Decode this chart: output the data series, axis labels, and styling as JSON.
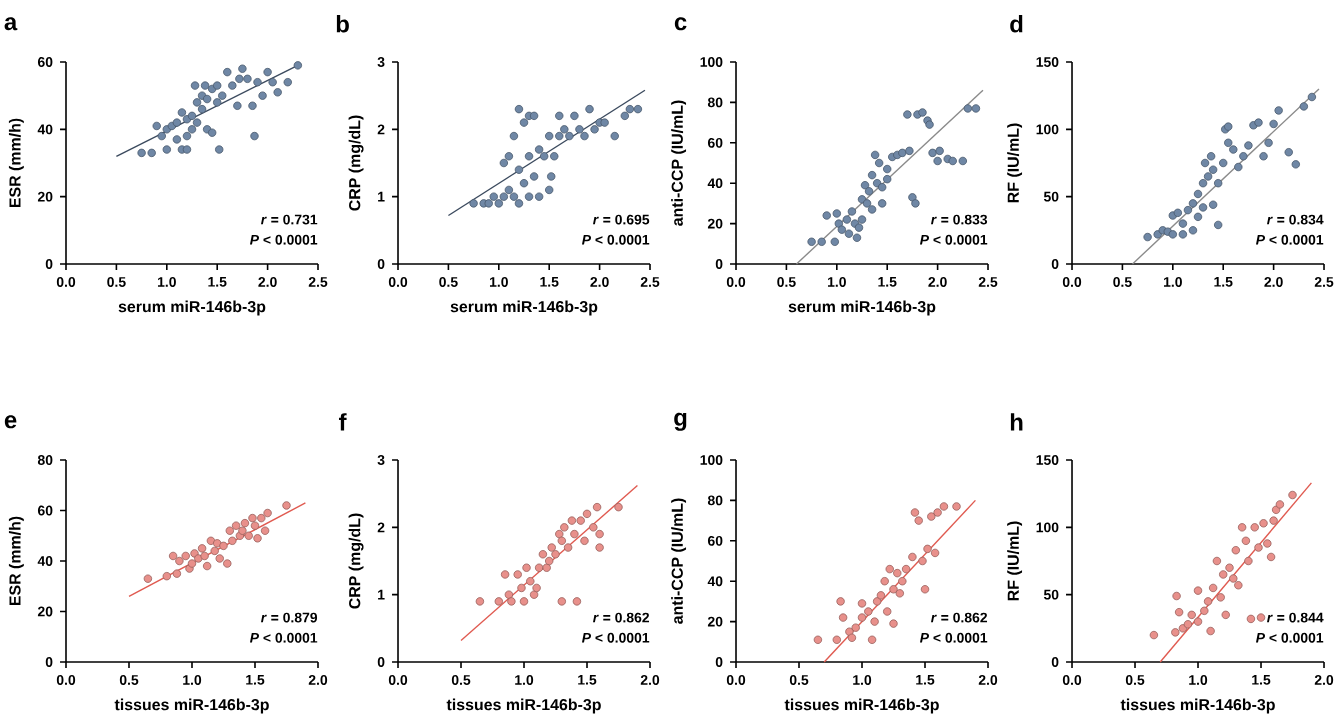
{
  "chart_data": [
    {
      "type": "scatter",
      "title": "a",
      "xlabel": "serum miR-146b-3p",
      "ylabel": "ESR (mm/h)",
      "marker": "circle",
      "xlim": [
        0,
        2.5
      ],
      "ylim": [
        0,
        60
      ],
      "xticks": [
        {
          "value": 0,
          "label": "0.0"
        },
        0.5,
        {
          "value": 1,
          "label": "1.0"
        },
        1.5,
        {
          "value": 2,
          "label": "2.0"
        },
        2.5
      ],
      "yticks": [
        0,
        20,
        40,
        60
      ],
      "annotations": [
        "*r* = 0.731",
        "*P* < 0.0001"
      ],
      "series": [
        {
          "color": "#6f87a5",
          "x": [
            0.75,
            0.85,
            0.9,
            0.95,
            1.0,
            1.0,
            1.05,
            1.1,
            1.1,
            1.15,
            1.15,
            1.2,
            1.2,
            1.2,
            1.25,
            1.25,
            1.28,
            1.3,
            1.3,
            1.35,
            1.35,
            1.38,
            1.4,
            1.4,
            1.45,
            1.45,
            1.5,
            1.5,
            1.52,
            1.55,
            1.6,
            1.65,
            1.7,
            1.72,
            1.75,
            1.8,
            1.85,
            1.87,
            1.9,
            1.95,
            2.0,
            2.05,
            2.1,
            2.2,
            2.3
          ],
          "values": [
            33,
            33,
            41,
            38,
            40,
            34,
            41,
            42,
            37,
            45,
            34,
            43,
            38,
            34,
            44,
            40,
            53,
            48,
            42,
            50,
            46,
            53,
            49,
            40,
            52,
            39,
            53,
            48,
            34,
            50,
            57,
            53,
            47,
            55,
            58,
            55,
            47,
            38,
            54,
            50,
            57,
            54,
            51,
            54,
            59
          ]
        },
        {
          "type": "line",
          "marker": "none",
          "color": "#3b4a5e",
          "x": [
            0.5,
            2.3
          ],
          "values": [
            32,
            59
          ]
        }
      ]
    },
    {
      "type": "scatter",
      "title": "b",
      "xlabel": "serum miR-146b-3p",
      "ylabel": "CRP (mg/dL)",
      "marker": "circle",
      "xlim": [
        0,
        2.5
      ],
      "ylim": [
        0,
        3
      ],
      "xticks": [
        {
          "value": 0,
          "label": "0.0"
        },
        0.5,
        {
          "value": 1,
          "label": "1.0"
        },
        1.5,
        {
          "value": 2,
          "label": "2.0"
        },
        2.5
      ],
      "yticks": [
        0,
        1,
        2,
        3
      ],
      "annotations": [
        "*r* = 0.695",
        "*P* < 0.0001"
      ],
      "series": [
        {
          "color": "#6f87a5",
          "x": [
            0.75,
            0.85,
            0.9,
            0.95,
            1.0,
            1.05,
            1.05,
            1.1,
            1.1,
            1.15,
            1.15,
            1.2,
            1.2,
            1.2,
            1.25,
            1.25,
            1.3,
            1.3,
            1.3,
            1.35,
            1.35,
            1.4,
            1.4,
            1.45,
            1.5,
            1.5,
            1.52,
            1.55,
            1.6,
            1.6,
            1.65,
            1.7,
            1.75,
            1.8,
            1.85,
            1.9,
            1.95,
            2.0,
            2.05,
            2.15,
            2.25,
            2.3,
            2.38
          ],
          "values": [
            0.9,
            0.9,
            0.9,
            1.0,
            0.9,
            1.0,
            1.5,
            1.1,
            1.6,
            1.9,
            1.0,
            2.3,
            1.4,
            0.9,
            2.1,
            1.2,
            2.2,
            1.6,
            1.0,
            2.2,
            1.3,
            1.7,
            1.0,
            1.6,
            1.9,
            1.1,
            1.3,
            1.6,
            2.2,
            1.9,
            2.0,
            1.9,
            2.2,
            2.0,
            1.9,
            2.3,
            2.0,
            2.1,
            2.1,
            1.9,
            2.2,
            2.3,
            2.3
          ]
        },
        {
          "type": "line",
          "marker": "none",
          "color": "#3b4a5e",
          "x": [
            0.5,
            2.45
          ],
          "values": [
            0.72,
            2.58
          ]
        }
      ]
    },
    {
      "type": "scatter",
      "title": "c",
      "xlabel": "serum miR-146b-3p",
      "ylabel": "anti-CCP (IU/mL)",
      "marker": "circle",
      "xlim": [
        0,
        2.5
      ],
      "ylim": [
        0,
        100
      ],
      "xticks": [
        {
          "value": 0,
          "label": "0.0"
        },
        0.5,
        {
          "value": 1,
          "label": "1.0"
        },
        1.5,
        {
          "value": 2,
          "label": "2.0"
        },
        2.5
      ],
      "yticks": [
        0,
        20,
        40,
        60,
        80,
        100
      ],
      "annotations": [
        "*r* = 0.833",
        "*P* < 0.0001"
      ],
      "series": [
        {
          "color": "#6f87a5",
          "x": [
            0.75,
            0.85,
            0.9,
            0.98,
            1.0,
            1.02,
            1.05,
            1.1,
            1.12,
            1.15,
            1.18,
            1.2,
            1.22,
            1.25,
            1.25,
            1.28,
            1.3,
            1.32,
            1.35,
            1.35,
            1.38,
            1.4,
            1.42,
            1.45,
            1.45,
            1.5,
            1.5,
            1.55,
            1.6,
            1.65,
            1.7,
            1.72,
            1.75,
            1.78,
            1.8,
            1.85,
            1.9,
            1.92,
            1.95,
            2.0,
            2.02,
            2.1,
            2.15,
            2.25,
            2.3,
            2.38
          ],
          "values": [
            11,
            11,
            24,
            11,
            25,
            20,
            17,
            22,
            15,
            26,
            20,
            13,
            18,
            32,
            22,
            39,
            30,
            36,
            44,
            27,
            54,
            40,
            50,
            38,
            30,
            47,
            42,
            53,
            54,
            55,
            74,
            56,
            33,
            30,
            74,
            75,
            71,
            69,
            55,
            51,
            56,
            52,
            51,
            51,
            77,
            77
          ]
        },
        {
          "type": "line",
          "marker": "none",
          "color": "#8a8a8a",
          "x": [
            0.6,
            2.45
          ],
          "values": [
            0,
            86
          ]
        }
      ]
    },
    {
      "type": "scatter",
      "title": "d",
      "ylabel": "RF (IU/mL)",
      "marker": "circle",
      "xlim": [
        0,
        2.5
      ],
      "ylim": [
        0,
        150
      ],
      "xticks": [
        {
          "value": 0,
          "label": "0.0"
        },
        0.5,
        {
          "value": 1,
          "label": "1.0"
        },
        1.5,
        {
          "value": 2,
          "label": "2.0"
        },
        2.5
      ],
      "yticks": [
        0,
        50,
        100,
        150
      ],
      "annotations": [
        "*r* = 0.834",
        "*P* < 0.0001"
      ],
      "series": [
        {
          "color": "#6f87a5",
          "x": [
            0.75,
            0.85,
            0.9,
            0.95,
            1.0,
            1.0,
            1.05,
            1.1,
            1.1,
            1.15,
            1.2,
            1.2,
            1.25,
            1.25,
            1.3,
            1.3,
            1.32,
            1.35,
            1.38,
            1.4,
            1.4,
            1.45,
            1.45,
            1.5,
            1.52,
            1.55,
            1.55,
            1.6,
            1.65,
            1.7,
            1.75,
            1.8,
            1.85,
            1.9,
            1.95,
            2.0,
            2.05,
            2.15,
            2.22,
            2.3,
            2.38
          ],
          "values": [
            20,
            22,
            25,
            24,
            36,
            22,
            38,
            30,
            22,
            40,
            25,
            45,
            52,
            35,
            60,
            42,
            75,
            65,
            80,
            70,
            44,
            60,
            29,
            75,
            100,
            90,
            102,
            85,
            72,
            80,
            88,
            103,
            105,
            80,
            90,
            104,
            114,
            83,
            74,
            117,
            124
          ]
        },
        {
          "type": "line",
          "marker": "none",
          "color": "#8a8a8a",
          "x": [
            0.6,
            2.45
          ],
          "values": [
            0,
            130
          ]
        }
      ]
    },
    {
      "type": "scatter",
      "title": "e",
      "xlabel": "tissues miR-146b-3p",
      "ylabel": "ESR (mm/h)",
      "marker": "circle",
      "xlim": [
        0,
        2
      ],
      "ylim": [
        0,
        80
      ],
      "xticks": [
        {
          "value": 0,
          "label": "0.0"
        },
        0.5,
        {
          "value": 1,
          "label": "1.0"
        },
        1.5,
        {
          "value": 2,
          "label": "2.0"
        }
      ],
      "yticks": [
        0,
        20,
        40,
        60,
        80
      ],
      "annotations": [
        "*r* = 0.879",
        "*P* < 0.0001"
      ],
      "series": [
        {
          "color": "#e8908b",
          "x": [
            0.65,
            0.8,
            0.85,
            0.88,
            0.9,
            0.95,
            0.98,
            1.0,
            1.02,
            1.05,
            1.08,
            1.1,
            1.12,
            1.15,
            1.18,
            1.2,
            1.22,
            1.25,
            1.28,
            1.3,
            1.32,
            1.35,
            1.38,
            1.4,
            1.42,
            1.45,
            1.48,
            1.5,
            1.52,
            1.55,
            1.58,
            1.6,
            1.75
          ],
          "values": [
            33,
            34,
            42,
            35,
            40,
            42,
            37,
            39,
            43,
            41,
            45,
            42,
            38,
            48,
            44,
            47,
            41,
            46,
            39,
            52,
            48,
            54,
            50,
            52,
            55,
            50,
            57,
            54,
            49,
            57,
            52,
            59,
            62
          ]
        },
        {
          "type": "line",
          "marker": "none",
          "color": "#e05a50",
          "x": [
            0.5,
            1.9
          ],
          "values": [
            26,
            63
          ]
        }
      ]
    },
    {
      "type": "scatter",
      "title": "f",
      "xlabel": "tissues miR-146b-3p",
      "ylabel": "CRP (mg/dL)",
      "marker": "circle",
      "xlim": [
        0,
        2
      ],
      "ylim": [
        0,
        3
      ],
      "xticks": [
        {
          "value": 0,
          "label": "0.0"
        },
        0.5,
        {
          "value": 1,
          "label": "1.0"
        },
        1.5,
        {
          "value": 2,
          "label": "2.0"
        }
      ],
      "yticks": [
        0,
        1,
        2,
        3
      ],
      "annotations": [
        "*r* = 0.862",
        "*P* < 0.0001"
      ],
      "series": [
        {
          "color": "#e8908b",
          "x": [
            0.65,
            0.8,
            0.85,
            0.88,
            0.9,
            0.95,
            0.98,
            1.0,
            1.02,
            1.05,
            1.08,
            1.1,
            1.12,
            1.15,
            1.18,
            1.2,
            1.22,
            1.25,
            1.28,
            1.3,
            1.3,
            1.32,
            1.35,
            1.38,
            1.4,
            1.42,
            1.45,
            1.48,
            1.5,
            1.55,
            1.58,
            1.6,
            1.6,
            1.75
          ],
          "values": [
            0.9,
            0.9,
            1.3,
            1.0,
            0.9,
            1.3,
            1.1,
            0.9,
            1.4,
            1.2,
            1.0,
            1.1,
            1.4,
            1.6,
            1.4,
            1.5,
            1.7,
            1.6,
            1.9,
            0.9,
            1.8,
            2.0,
            1.7,
            2.1,
            1.9,
            0.9,
            2.1,
            1.8,
            2.2,
            2.0,
            2.3,
            1.9,
            1.7,
            2.3
          ]
        },
        {
          "type": "line",
          "marker": "none",
          "color": "#e05a50",
          "x": [
            0.5,
            1.9
          ],
          "values": [
            0.32,
            2.62
          ]
        }
      ]
    },
    {
      "type": "scatter",
      "title": "g",
      "xlabel": "tissues miR-146b-3p",
      "ylabel": "anti-CCP (IU/mL)",
      "marker": "circle",
      "xlim": [
        0,
        2
      ],
      "ylim": [
        0,
        100
      ],
      "xticks": [
        {
          "value": 0,
          "label": "0.0"
        },
        0.5,
        {
          "value": 1,
          "label": "1.0"
        },
        1.5,
        {
          "value": 2,
          "label": "2.0"
        }
      ],
      "yticks": [
        0,
        20,
        40,
        60,
        80,
        100
      ],
      "annotations": [
        "*r* = 0.862",
        "*P* < 0.0001"
      ],
      "series": [
        {
          "color": "#e8908b",
          "x": [
            0.65,
            0.8,
            0.83,
            0.85,
            0.9,
            0.92,
            0.95,
            1.0,
            1.0,
            1.05,
            1.08,
            1.1,
            1.12,
            1.15,
            1.18,
            1.2,
            1.22,
            1.25,
            1.25,
            1.28,
            1.3,
            1.32,
            1.35,
            1.4,
            1.42,
            1.45,
            1.48,
            1.5,
            1.52,
            1.55,
            1.58,
            1.6,
            1.65,
            1.75
          ],
          "values": [
            11,
            11,
            30,
            22,
            15,
            12,
            17,
            29,
            22,
            25,
            11,
            20,
            30,
            33,
            40,
            25,
            46,
            19,
            36,
            44,
            34,
            40,
            46,
            52,
            74,
            70,
            50,
            36,
            56,
            72,
            54,
            74,
            77,
            77
          ]
        },
        {
          "type": "line",
          "marker": "none",
          "color": "#e05a50",
          "x": [
            0.7,
            1.9
          ],
          "values": [
            0,
            80
          ]
        }
      ]
    },
    {
      "type": "scatter",
      "title": "h",
      "xlabel": "tissues miR-146b-3p",
      "ylabel": "RF (IU/mL)",
      "marker": "circle",
      "xlim": [
        0,
        2
      ],
      "ylim": [
        0,
        150
      ],
      "xticks": [
        {
          "value": 0,
          "label": "0.0"
        },
        0.5,
        {
          "value": 1,
          "label": "1.0"
        },
        1.5,
        {
          "value": 2,
          "label": "2.0"
        }
      ],
      "yticks": [
        0,
        50,
        100,
        150
      ],
      "annotations": [
        "*r* = 0.844",
        "*P* < 0.0001"
      ],
      "series": [
        {
          "color": "#e8908b",
          "x": [
            0.65,
            0.82,
            0.83,
            0.85,
            0.88,
            0.92,
            0.95,
            1.0,
            1.0,
            1.05,
            1.08,
            1.1,
            1.12,
            1.15,
            1.18,
            1.2,
            1.22,
            1.25,
            1.28,
            1.3,
            1.32,
            1.35,
            1.38,
            1.4,
            1.42,
            1.45,
            1.48,
            1.5,
            1.52,
            1.55,
            1.58,
            1.6,
            1.62,
            1.65,
            1.75
          ],
          "values": [
            20,
            22,
            49,
            37,
            25,
            28,
            35,
            53,
            30,
            38,
            45,
            23,
            55,
            75,
            48,
            65,
            35,
            70,
            62,
            83,
            57,
            100,
            90,
            75,
            32,
            100,
            85,
            33,
            103,
            88,
            78,
            105,
            113,
            117,
            124
          ]
        },
        {
          "type": "line",
          "marker": "none",
          "color": "#e05a50",
          "x": [
            0.7,
            1.9
          ],
          "values": [
            0,
            133
          ]
        }
      ]
    }
  ]
}
